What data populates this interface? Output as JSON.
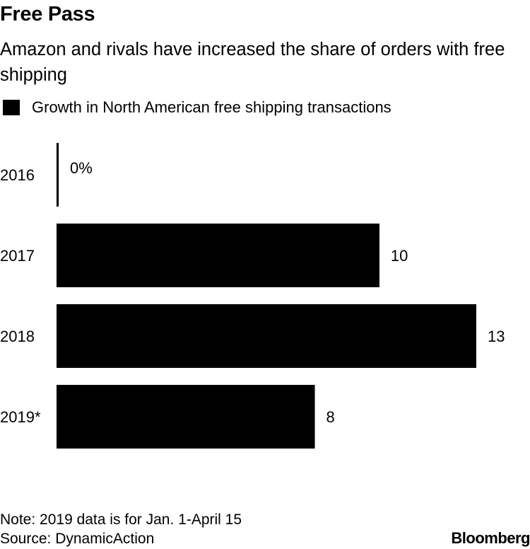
{
  "title": "Free Pass",
  "subtitle": "Amazon and rivals have increased the share of orders with free shipping",
  "legend": {
    "label": "Growth in North American free shipping transactions",
    "color": "#000000"
  },
  "chart_data": {
    "type": "bar",
    "orientation": "horizontal",
    "categories": [
      "2016",
      "2017",
      "2018",
      "2019*"
    ],
    "values": [
      0,
      10,
      13,
      8
    ],
    "value_labels": [
      "0%",
      "10",
      "13",
      "8"
    ],
    "series": [
      {
        "name": "Growth in North American free shipping transactions",
        "values": [
          0,
          10,
          13,
          8
        ],
        "color": "#000000"
      }
    ],
    "xlim": [
      0,
      13
    ],
    "xlabel": "",
    "ylabel": "",
    "grid": false,
    "legend_position": "top-left"
  },
  "footer": {
    "note": "Note: 2019 data is for Jan. 1-April 15",
    "source": "Source: DynamicAction",
    "brand": "Bloomberg"
  }
}
